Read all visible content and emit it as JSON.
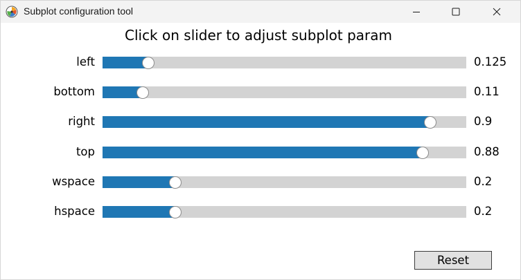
{
  "window": {
    "title": "Subplot configuration tool",
    "app_icon": "matplotlib-icon",
    "controls": {
      "minimize": "minimize-icon",
      "maximize": "maximize-icon",
      "close": "close-icon"
    }
  },
  "heading": "Click on slider to adjust subplot param",
  "sliders": [
    {
      "label": "left",
      "value": "0.125",
      "fraction": 0.125
    },
    {
      "label": "bottom",
      "value": "0.11",
      "fraction": 0.11
    },
    {
      "label": "right",
      "value": "0.9",
      "fraction": 0.9
    },
    {
      "label": "top",
      "value": "0.88",
      "fraction": 0.88
    },
    {
      "label": "wspace",
      "value": "0.2",
      "fraction": 0.2
    },
    {
      "label": "hspace",
      "value": "0.2",
      "fraction": 0.2
    }
  ],
  "reset_label": "Reset",
  "colors": {
    "fill": "#1f77b4",
    "track": "#d3d3d3",
    "titlebar": "#f3f3f3"
  }
}
